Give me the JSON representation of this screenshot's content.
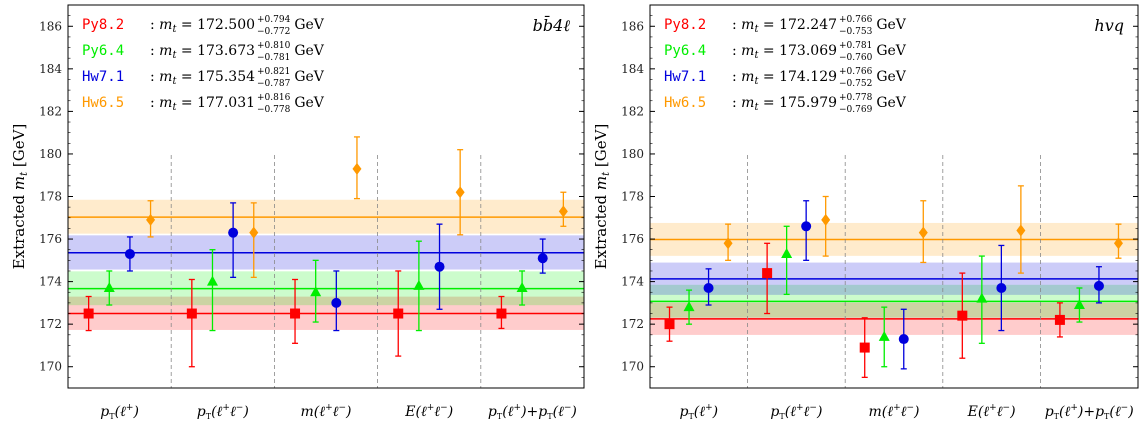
{
  "chart_data": [
    {
      "type": "scatter",
      "ylabel": "Extracted m_t [GeV]",
      "ylim": [
        169,
        187
      ],
      "yticks": [
        170,
        172,
        174,
        176,
        178,
        180,
        182,
        184,
        186
      ],
      "grid": false,
      "label": "bb̄4ℓ",
      "categories": [
        "pT(ℓ+)",
        "pT(ℓ+ℓ−)",
        "m(ℓ+ℓ−)",
        "E(ℓ+ℓ−)",
        "pT(ℓ+)+pT(ℓ−)"
      ],
      "series": [
        {
          "name": "Py8.2",
          "color": "#ff0000",
          "marker": "square",
          "combined": {
            "value": "172.500",
            "up": "+0.794",
            "down": "−0.772",
            "center": 172.5,
            "band": [
              171.728,
              173.294
            ]
          },
          "values": [
            172.5,
            172.5,
            172.5,
            172.5,
            172.5
          ],
          "err_low": [
            0.8,
            2.5,
            1.4,
            2.0,
            0.7
          ],
          "err_high": [
            0.8,
            1.6,
            1.6,
            2.0,
            0.8
          ]
        },
        {
          "name": "Py6.4",
          "color": "#00ee00",
          "marker": "triangle",
          "combined": {
            "value": "173.673",
            "up": "+0.810",
            "down": "−0.781",
            "center": 173.673,
            "band": [
              172.892,
              174.483
            ]
          },
          "values": [
            173.7,
            174.0,
            173.5,
            173.8,
            173.7
          ],
          "err_low": [
            0.8,
            2.3,
            1.4,
            2.1,
            0.8
          ],
          "err_high": [
            0.8,
            1.5,
            1.5,
            2.1,
            0.8
          ]
        },
        {
          "name": "Hw7.1",
          "color": "#0000dd",
          "marker": "circle",
          "combined": {
            "value": "175.354",
            "up": "+0.821",
            "down": "−0.787",
            "center": 175.354,
            "band": [
              174.567,
              176.175
            ]
          },
          "values": [
            175.3,
            176.3,
            173.0,
            174.7,
            175.1
          ],
          "err_low": [
            0.8,
            2.1,
            1.3,
            2.0,
            0.7
          ],
          "err_high": [
            0.8,
            1.4,
            1.5,
            2.0,
            0.9
          ]
        },
        {
          "name": "Hw6.5",
          "color": "#ff9900",
          "marker": "diamond",
          "combined": {
            "value": "177.031",
            "up": "+0.816",
            "down": "−0.778",
            "center": 177.031,
            "band": [
              176.253,
              177.847
            ]
          },
          "values": [
            176.9,
            176.3,
            179.3,
            178.2,
            177.3
          ],
          "err_low": [
            0.8,
            2.1,
            1.4,
            2.0,
            0.7
          ],
          "err_high": [
            0.9,
            1.4,
            1.5,
            2.0,
            0.9
          ]
        }
      ]
    },
    {
      "type": "scatter",
      "ylabel": "Extracted m_t [GeV]",
      "ylim": [
        169,
        187
      ],
      "yticks": [
        170,
        172,
        174,
        176,
        178,
        180,
        182,
        184,
        186
      ],
      "grid": false,
      "label": "hvq",
      "categories": [
        "pT(ℓ+)",
        "pT(ℓ+ℓ−)",
        "m(ℓ+ℓ−)",
        "E(ℓ+ℓ−)",
        "pT(ℓ+)+pT(ℓ−)"
      ],
      "series": [
        {
          "name": "Py8.2",
          "color": "#ff0000",
          "marker": "square",
          "combined": {
            "value": "172.247",
            "up": "+0.766",
            "down": "−0.753",
            "center": 172.247,
            "band": [
              171.494,
              173.013
            ]
          },
          "values": [
            172.0,
            174.4,
            170.9,
            172.4,
            172.2
          ],
          "err_low": [
            0.8,
            1.9,
            1.4,
            2.0,
            0.8
          ],
          "err_high": [
            0.8,
            1.4,
            1.4,
            2.0,
            0.8
          ]
        },
        {
          "name": "Py6.4",
          "color": "#00ee00",
          "marker": "triangle",
          "combined": {
            "value": "173.069",
            "up": "+0.781",
            "down": "−0.760",
            "center": 173.069,
            "band": [
              172.309,
              173.85
            ]
          },
          "values": [
            172.8,
            175.3,
            171.4,
            173.2,
            172.9
          ],
          "err_low": [
            0.8,
            1.9,
            1.4,
            2.1,
            0.8
          ],
          "err_high": [
            0.8,
            1.3,
            1.4,
            2.0,
            0.8
          ]
        },
        {
          "name": "Hw7.1",
          "color": "#0000dd",
          "marker": "circle",
          "combined": {
            "value": "174.129",
            "up": "+0.766",
            "down": "−0.752",
            "center": 174.129,
            "band": [
              173.377,
              174.895
            ]
          },
          "values": [
            173.7,
            176.6,
            171.3,
            173.7,
            173.8
          ],
          "err_low": [
            0.8,
            1.6,
            1.4,
            2.0,
            0.8
          ],
          "err_high": [
            0.9,
            1.2,
            1.4,
            2.0,
            0.9
          ]
        },
        {
          "name": "Hw6.5",
          "color": "#ff9900",
          "marker": "diamond",
          "combined": {
            "value": "175.979",
            "up": "+0.778",
            "down": "−0.769",
            "center": 175.979,
            "band": [
              175.21,
              176.757
            ]
          },
          "values": [
            175.8,
            176.9,
            176.3,
            176.4,
            175.8
          ],
          "err_low": [
            0.8,
            1.7,
            1.4,
            2.0,
            0.7
          ],
          "err_high": [
            0.9,
            1.1,
            1.5,
            2.1,
            0.9
          ]
        }
      ]
    }
  ]
}
